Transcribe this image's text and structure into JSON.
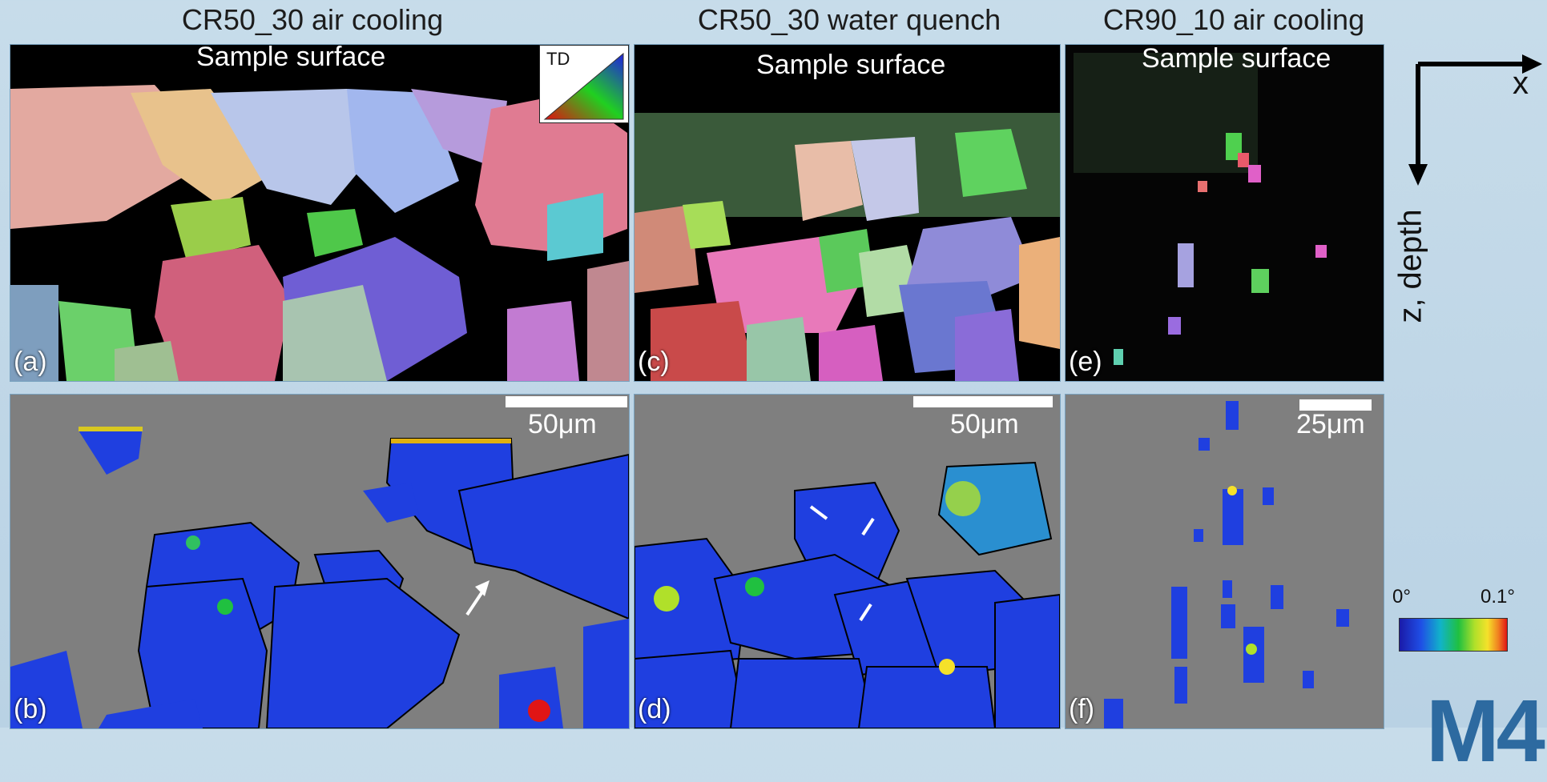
{
  "columns": [
    {
      "title": "CR50_30 air cooling",
      "top_tag": "(a)",
      "bottom_tag": "(b)",
      "surface": "Sample surface",
      "scale": "50μm"
    },
    {
      "title": "CR50_30 water quench",
      "top_tag": "(c)",
      "bottom_tag": "(d)",
      "surface": "Sample surface",
      "scale": "50μm"
    },
    {
      "title": "CR90_10 air cooling",
      "top_tag": "(e)",
      "bottom_tag": "(f)",
      "surface": "Sample surface",
      "scale": "25μm"
    }
  ],
  "ipf_key_label": "TD",
  "axes": {
    "x": "x",
    "z": "z, depth"
  },
  "colorbar": {
    "min": "0°",
    "max": "0.1°"
  },
  "logo_text": "M4",
  "colors": {
    "background": "#c0d7e8",
    "gray_field": "#7f7f7f",
    "kam_blue": "#1f3fe0",
    "border": "#000000"
  }
}
